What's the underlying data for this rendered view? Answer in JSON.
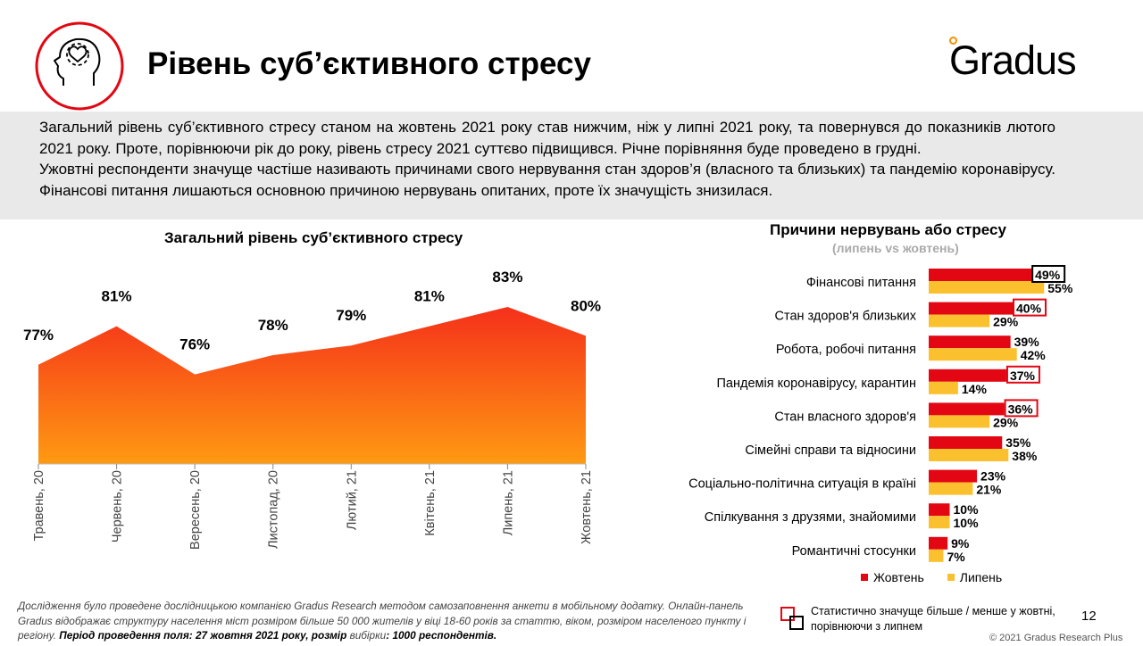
{
  "header": {
    "title": "Рівень суб’єктивного стресу",
    "logo_text": "Gradus",
    "icon": "head-heart-icon"
  },
  "summary": {
    "paragraph1": "Загальний рівень суб’єктивного стресу станом на жовтень 2021 року став нижчим, ніж у липні 2021 року, та повернувся до показників лютого 2021 року. Проте, порівнюючи рік до року, рівень стресу 2021 суттєво підвищився. Річне порівняння буде проведено в грудні.",
    "paragraph2": "Ужовтні респонденти значуще частіше називають причинами свого нервування стан здоров’я (власного та близьких) та пандемію коронавірусу. Фінансові питання лишаються основною причиною нервувань опитаних, проте їх значущість знизилася."
  },
  "colors": {
    "accent_red": "#e30613",
    "accent_yellow": "#fbc02d",
    "area_top": "#f5301a",
    "area_bottom": "#ff9a12",
    "summary_bg": "#e9e9e9",
    "logo_dot": "#f39200"
  },
  "chart_data": [
    {
      "type": "area",
      "title": "Загальний рівень суб’єктивного стресу",
      "x": [
        "Травень, 20",
        "Червень, 20",
        "Вересень, 20",
        "Листопад, 20",
        "Лютий, 21",
        "Квітень, 21",
        "Липень, 21",
        "Жовтень, 21"
      ],
      "values": [
        77,
        81,
        76,
        78,
        79,
        81,
        83,
        80
      ],
      "value_labels": [
        "77%",
        "81%",
        "76%",
        "78%",
        "79%",
        "81%",
        "83%",
        "80%"
      ],
      "grid": false
    },
    {
      "type": "bar",
      "orientation": "horizontal",
      "title": "Причини нервувань або стресу",
      "subtitle": "(липень vs жовтень)",
      "categories": [
        "Фінансові питання",
        "Стан здоров'я близьких",
        "Робота, робочі питання",
        "Пандемія коронавірусу, карантин",
        "Стан власного здоров'я",
        "Сімейні справи та відносини",
        "Соціально-політична ситуація в країні",
        "Спілкування з друзями, знайомими",
        "Романтичні стосунки"
      ],
      "series": [
        {
          "name": "Жовтень",
          "color": "#e30613",
          "values": [
            49,
            40,
            39,
            37,
            36,
            35,
            23,
            10,
            9
          ],
          "labels": [
            "49%",
            "40%",
            "39%",
            "37%",
            "36%",
            "35%",
            "23%",
            "10%",
            "9%"
          ],
          "significance": [
            "lower",
            "higher",
            "none",
            "higher",
            "higher",
            "none",
            "none",
            "none",
            "none"
          ]
        },
        {
          "name": "Липень",
          "color": "#fbc02d",
          "values": [
            55,
            29,
            42,
            14,
            29,
            38,
            21,
            10,
            7
          ],
          "labels": [
            "55%",
            "29%",
            "42%",
            "14%",
            "29%",
            "38%",
            "21%",
            "10%",
            "7%"
          ]
        }
      ],
      "legend_position": "bottom-right"
    }
  ],
  "legend": {
    "october": "Жовтень",
    "july": "Липень"
  },
  "significance_note": {
    "line1": "Статистично значуще більше / менше у жовтні,",
    "line2": "порівнюючи з липнем"
  },
  "footnote": {
    "part1": "Дослідження було проведене дослідницькою компанією Gradus Research методом самозаповнення анкети в мобільному додатку. Онлайн-панель Gradus відображає структуру населення міст розміром більше 50 000 жителів у віці 18-60 років за статтю, віком, розміром населеного пункту і регіону. ",
    "part2": "Період проведення поля: 27 жовтня 2021 року, розмір ",
    "part3": "вибірки",
    "part4": ": 1000 респондентів."
  },
  "page_number": "12",
  "copyright": "© 2021 Gradus Research Plus"
}
